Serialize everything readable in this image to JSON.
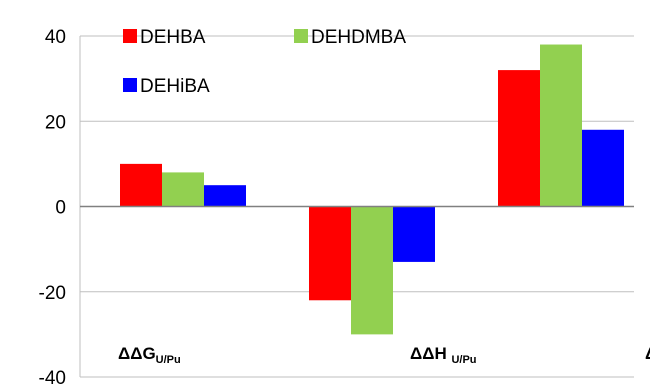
{
  "chart_data": {
    "type": "bar",
    "categories": [
      {
        "main": "ΔΔG",
        "sub": "U/Pu",
        "lead": ""
      },
      {
        "main": "ΔΔH",
        "sub": "U/Pu",
        "lead": " "
      },
      {
        "main": "Δ",
        "sub": "",
        "lead": ""
      }
    ],
    "series": [
      {
        "name": "DEHBA",
        "color": "#ff0000",
        "values": [
          10,
          -22,
          32
        ]
      },
      {
        "name": "DEHDMBA",
        "color": "#92d050",
        "values": [
          8,
          -30,
          38
        ]
      },
      {
        "name": "DEHiBA",
        "color": "#0000ff",
        "values": [
          5,
          -13,
          18
        ]
      }
    ],
    "yticks": [
      "40",
      "20",
      "0",
      "-20",
      "-40"
    ],
    "ylim": [
      -40,
      40
    ],
    "grid": true,
    "legend_position": "top-left"
  }
}
